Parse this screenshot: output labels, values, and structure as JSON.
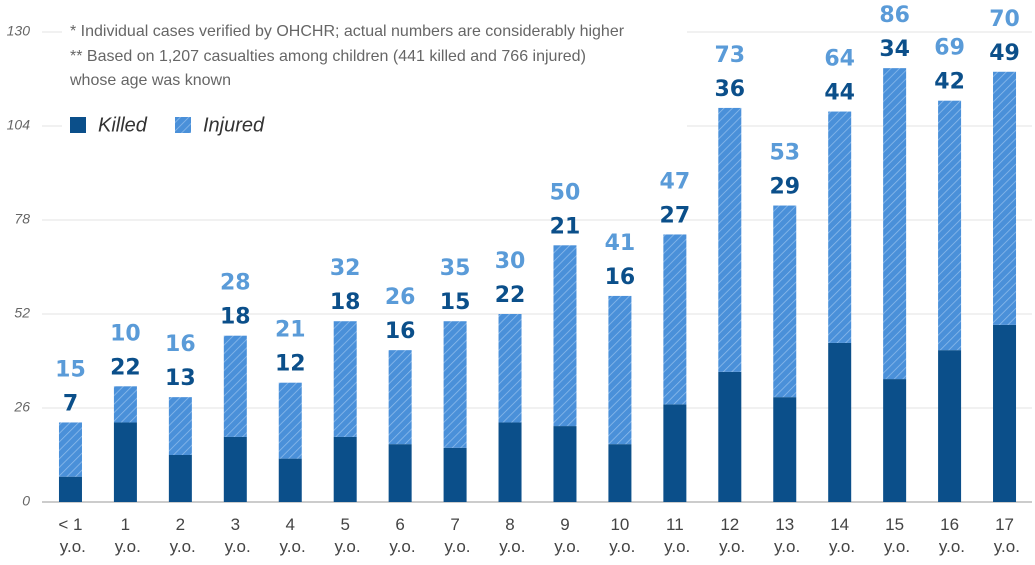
{
  "chart_data": {
    "type": "bar",
    "stacked": true,
    "notes": [
      "* Individual cases verified by OHCHR; actual numbers are considerably higher",
      "** Based on 1,207 casualties among children (441 killed and 766 injured)",
      "whose age was known"
    ],
    "categories": [
      "< 1 y.o.",
      "1 y.o.",
      "2 y.o.",
      "3 y.o.",
      "4 y.o.",
      "5 y.o.",
      "6 y.o.",
      "7 y.o.",
      "8 y.o.",
      "9 y.o.",
      "10 y.o.",
      "11 y.o.",
      "12 y.o.",
      "13 y.o.",
      "14 y.o.",
      "15 y.o.",
      "16 y.o.",
      "17 y.o."
    ],
    "series": [
      {
        "name": "Killed",
        "color": "#0b4f8a",
        "label_color": "#0b4f8a",
        "values": [
          7,
          22,
          13,
          18,
          12,
          18,
          16,
          15,
          22,
          21,
          16,
          27,
          36,
          29,
          44,
          34,
          42,
          49
        ]
      },
      {
        "name": "Injured",
        "color": "#4a90d9",
        "label_color": "#5a9bd8",
        "hatched": true,
        "values": [
          15,
          10,
          16,
          28,
          21,
          32,
          26,
          35,
          30,
          50,
          41,
          47,
          73,
          53,
          64,
          86,
          69,
          70
        ]
      }
    ],
    "ylim": [
      0,
      130
    ],
    "yticks": [
      0,
      26,
      52,
      78,
      104,
      130
    ],
    "grid": true
  }
}
